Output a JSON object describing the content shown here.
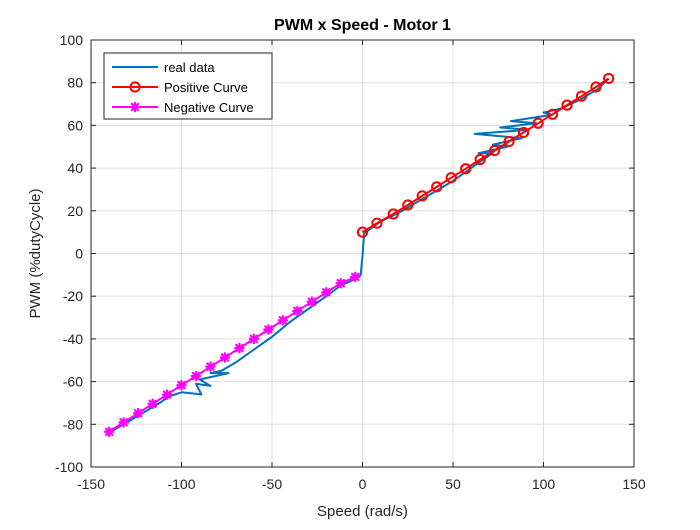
{
  "chart_data": {
    "type": "line",
    "title": "PWM x Speed - Motor 1",
    "xlabel": "Speed (rad/s)",
    "ylabel": "PWM (%dutyCycle)",
    "xlim": [
      -150,
      150
    ],
    "ylim": [
      -100,
      100
    ],
    "xticks": [
      -150,
      -100,
      -50,
      0,
      50,
      100,
      150
    ],
    "yticks": [
      -100,
      -80,
      -60,
      -40,
      -20,
      0,
      20,
      40,
      60,
      80,
      100
    ],
    "grid": true,
    "box": true,
    "legend": {
      "position": "top-left",
      "entries": [
        "real data",
        "Positive Curve",
        "Negative Curve"
      ]
    },
    "series": [
      {
        "name": "real data",
        "color": "#0072BD",
        "marker": "none",
        "x": [
          -140,
          -130,
          -120,
          -112,
          -107,
          -100,
          -89,
          -92,
          -84,
          -90,
          -74,
          -84,
          -78,
          -70,
          -60,
          -50,
          -40,
          -30,
          -20,
          -12,
          -4,
          -1,
          0,
          1,
          2,
          10,
          20,
          30,
          40,
          50,
          60,
          65,
          72,
          64,
          80,
          72,
          88,
          62,
          92,
          76,
          96,
          82,
          105,
          100,
          110,
          120,
          130,
          136
        ],
        "y": [
          -84,
          -79,
          -74,
          -70,
          -67,
          -65,
          -66,
          -61,
          -62,
          -59,
          -56,
          -56,
          -55,
          -51,
          -45,
          -39,
          -32,
          -26,
          -20,
          -15,
          -12,
          -10,
          -1,
          10,
          10,
          15,
          19,
          24,
          29,
          34,
          40,
          43,
          47,
          47,
          50,
          51,
          54,
          56,
          58,
          59,
          61,
          62,
          65,
          66,
          68,
          72,
          77,
          82
        ]
      },
      {
        "name": "Positive Curve",
        "color": "#FF0000",
        "marker": "circle",
        "x": [
          0,
          8,
          17,
          25,
          33,
          41,
          49,
          57,
          65,
          73,
          81,
          89,
          97,
          105,
          113,
          121,
          129,
          136
        ],
        "y": [
          10,
          14.2,
          18.5,
          22.7,
          27,
          31.2,
          35.5,
          39.7,
          44,
          48.2,
          52.5,
          56.7,
          61,
          65.2,
          69.5,
          73.7,
          78,
          82
        ]
      },
      {
        "name": "Negative Curve",
        "color": "#FF00FF",
        "marker": "asterisk",
        "x": [
          -140,
          -132,
          -124,
          -116,
          -108,
          -100,
          -92,
          -84,
          -76,
          -68,
          -60,
          -52,
          -44,
          -36,
          -28,
          -20,
          -12,
          -4
        ],
        "y": [
          -83.5,
          -79.1,
          -74.8,
          -70.4,
          -66.1,
          -61.7,
          -57.4,
          -53,
          -48.7,
          -44.3,
          -40,
          -35.6,
          -31.3,
          -26.9,
          -22.6,
          -18.2,
          -13.9,
          -11
        ]
      }
    ]
  }
}
